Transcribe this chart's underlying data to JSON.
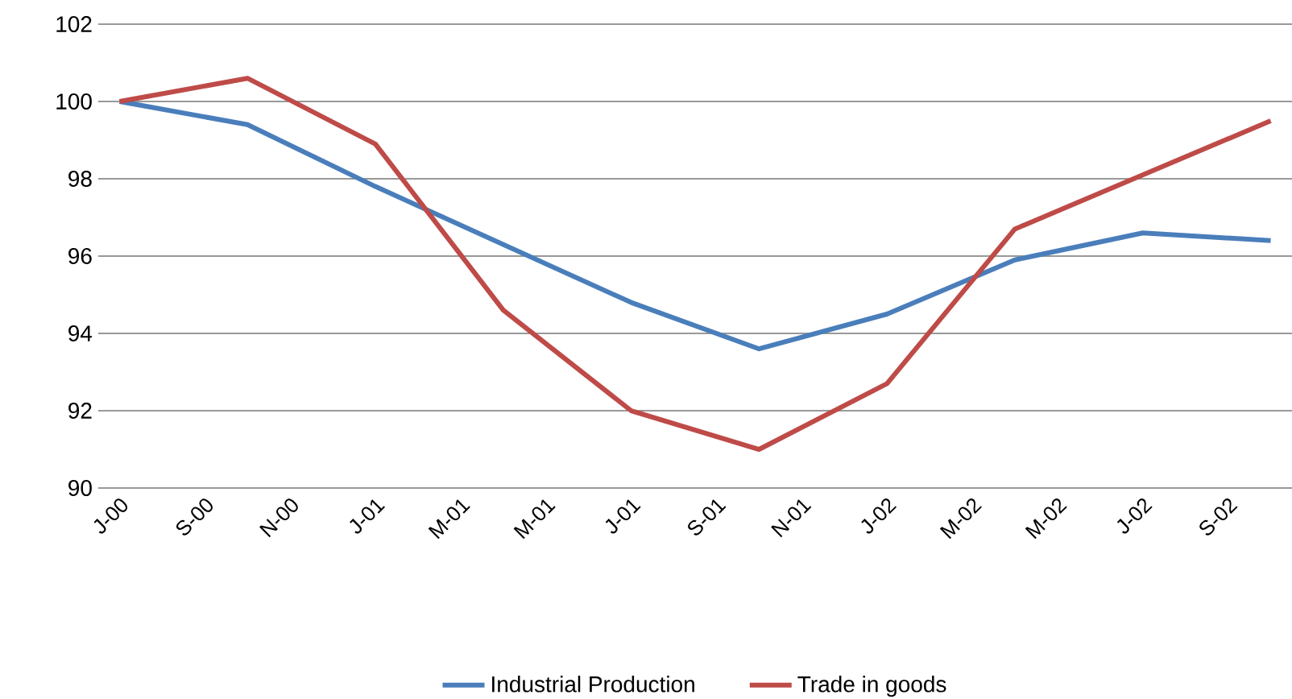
{
  "chart_data": {
    "type": "line",
    "categories": [
      "J-00",
      null,
      "S-00",
      null,
      "N-00",
      null,
      "J-01",
      null,
      "M-01",
      null,
      "M-01",
      null,
      "J-01",
      null,
      "S-01",
      null,
      "N-01",
      null,
      "J-02",
      null,
      "M-02",
      null,
      "M-02",
      null,
      "J-02",
      null,
      "S-02",
      null
    ],
    "series": [
      {
        "name": "Industrial Production",
        "color": "#4a7ebb",
        "values": [
          100.0,
          null,
          null,
          99.4,
          null,
          null,
          97.8,
          null,
          null,
          96.3,
          null,
          null,
          94.8,
          null,
          null,
          93.6,
          null,
          null,
          94.5,
          null,
          null,
          95.9,
          null,
          null,
          96.6,
          null,
          null,
          96.4
        ]
      },
      {
        "name": "Trade in goods",
        "color": "#be4b48",
        "values": [
          100.0,
          null,
          null,
          100.6,
          null,
          null,
          98.9,
          null,
          null,
          94.6,
          null,
          null,
          92.0,
          null,
          null,
          91.0,
          null,
          null,
          92.7,
          null,
          null,
          96.7,
          null,
          null,
          98.1,
          null,
          null,
          99.5
        ]
      }
    ],
    "ylim": [
      90,
      102
    ],
    "yticks": [
      90,
      92,
      94,
      96,
      98,
      100,
      102
    ],
    "grid": "y",
    "legend": "bottom",
    "marker": "none",
    "line_style": "solid"
  }
}
